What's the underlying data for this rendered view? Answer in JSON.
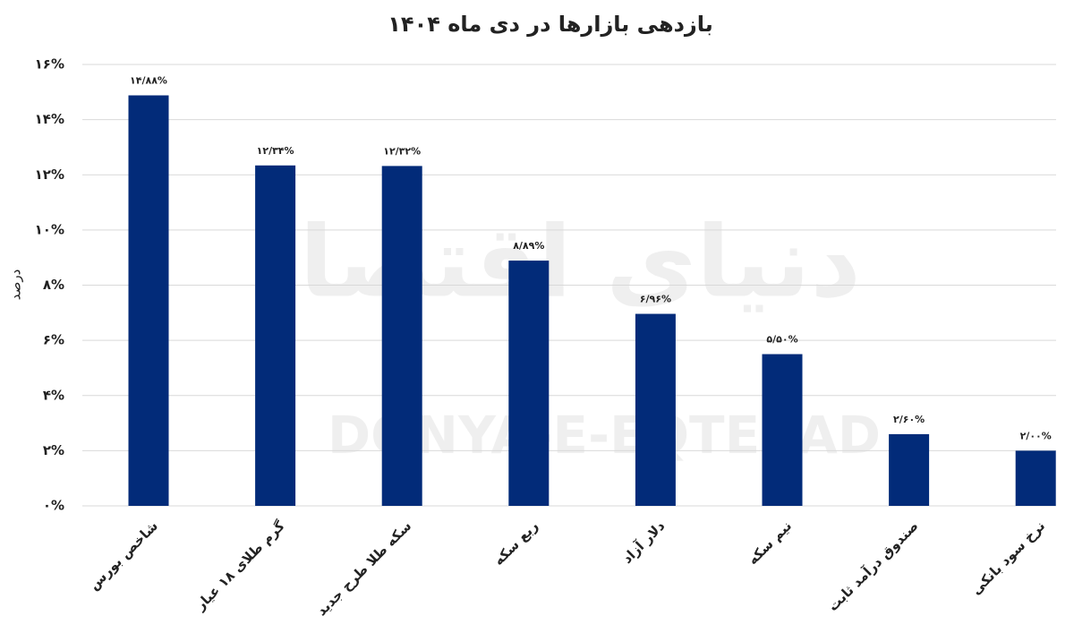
{
  "chart_data": {
    "type": "bar",
    "title": "بازدهی بازارها در دی ماه ۱۴۰۴",
    "y_label": "درصد",
    "watermark": [
      "دنیای اقتصاد",
      "DONYA-E-EQTESAD"
    ],
    "categories": [
      "شاخص بورس",
      "گرم طلای ۱۸ عیار",
      "سکه طلا طرح جدید",
      "ربع سکه",
      "دلار آزاد",
      "نیم سکه",
      "صندوق درآمد ثابت",
      "نرخ سود بانکی"
    ],
    "values": [
      14.88,
      12.34,
      12.32,
      8.89,
      6.96,
      5.5,
      2.6,
      2.0
    ],
    "value_labels": [
      "۱۴/۸۸%",
      "۱۲/۳۴%",
      "۱۲/۳۲%",
      "۸/۸۹%",
      "۶/۹۶%",
      "۵/۵۰%",
      "۲/۶۰%",
      "۲/۰۰%"
    ],
    "color": "#022b79",
    "ylim": [
      0,
      16
    ],
    "yticks": [
      {
        "value": 0,
        "label": "۰%"
      },
      {
        "value": 2,
        "label": "۲%"
      },
      {
        "value": 4,
        "label": "۴%"
      },
      {
        "value": 6,
        "label": "۶%"
      },
      {
        "value": 8,
        "label": "۸%"
      },
      {
        "value": 10,
        "label": "۱۰%"
      },
      {
        "value": 12,
        "label": "۱۲%"
      },
      {
        "value": 14,
        "label": "۱۴%"
      },
      {
        "value": 16,
        "label": "۱۶%"
      }
    ],
    "grid": true
  }
}
